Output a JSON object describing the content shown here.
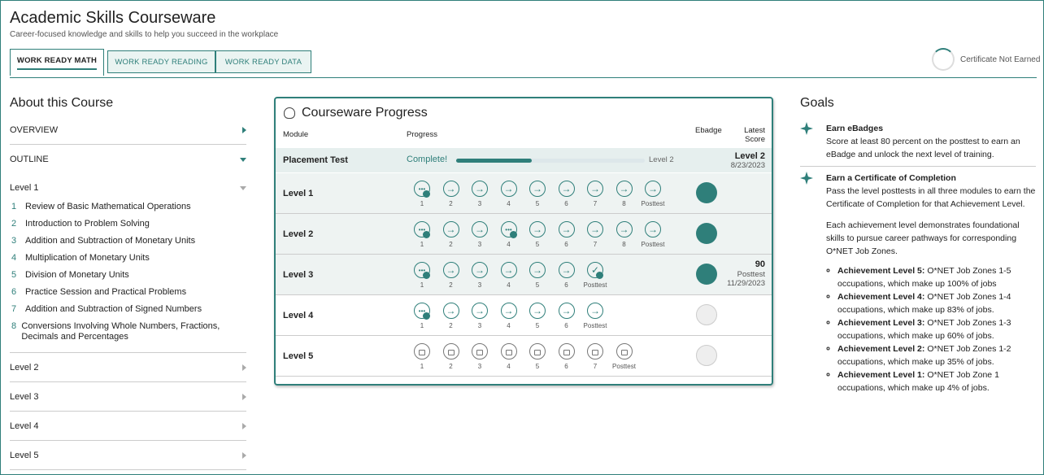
{
  "header": {
    "title": "Academic Skills Courseware",
    "subtitle": "Career-focused knowledge and skills to help you succeed in the workplace"
  },
  "tabs": [
    "WORK READY MATH",
    "WORK READY READING",
    "WORK READY DATA"
  ],
  "certificate": "Certificate Not Earned",
  "about": {
    "title": "About this Course",
    "sections": [
      "OVERVIEW",
      "OUTLINE"
    ],
    "levels": [
      {
        "name": "Level 1",
        "lessons": [
          {
            "number": "1",
            "title": "Review of Basic Mathematical Operations"
          },
          {
            "number": "2",
            "title": "Introduction to Problem Solving"
          },
          {
            "number": "3",
            "title": "Addition and Subtraction of Monetary Units"
          },
          {
            "number": "4",
            "title": "Multiplication of Monetary Units"
          },
          {
            "number": "5",
            "title": "Division of Monetary Units"
          },
          {
            "number": "6",
            "title": "Practice Session and Practical Problems"
          },
          {
            "number": "7",
            "title": "Addition and Subtraction of Signed Numbers"
          },
          {
            "number": "8",
            "title": "Conversions Involving Whole Numbers, Fractions, Decimals and Percentages"
          }
        ]
      },
      {
        "name": "Level 2"
      },
      {
        "name": "Level 3"
      },
      {
        "name": "Level 4"
      },
      {
        "name": "Level 5"
      }
    ]
  },
  "progress": {
    "title": "Courseware Progress",
    "columns": {
      "module": "Module",
      "progress": "Progress",
      "ebadge": "Ebadge",
      "score": "Latest Score"
    },
    "placement": {
      "name": "Placement Test",
      "status": "Complete!",
      "bar_label": "Level 2",
      "score": "Level 2",
      "date": "8/23/2023"
    },
    "rows": [
      {
        "name": "Level 1",
        "steps": [
          "1",
          "2",
          "3",
          "4",
          "5",
          "6",
          "7",
          "8",
          "Posttest"
        ]
      },
      {
        "name": "Level 2",
        "steps": [
          "1",
          "2",
          "3",
          "4",
          "5",
          "6",
          "7",
          "8",
          "Posttest"
        ]
      },
      {
        "name": "Level 3",
        "steps": [
          "1",
          "2",
          "3",
          "4",
          "5",
          "6",
          "Posttest"
        ],
        "score": 90,
        "score_label": "Posttest",
        "date": "11/29/2023"
      },
      {
        "name": "Level 4",
        "steps": [
          "1",
          "2",
          "3",
          "4",
          "5",
          "6",
          "Posttest"
        ]
      },
      {
        "name": "Level 5",
        "steps": [
          "1",
          "2",
          "3",
          "4",
          "5",
          "6",
          "7",
          "Posttest"
        ]
      }
    ]
  },
  "goals": {
    "title": "Goals",
    "items": [
      {
        "title": "Earn eBadges",
        "text": "Score at least 80 percent on the posttest to earn an eBadge and unlock the next level of training."
      },
      {
        "title": "Earn a Certificate of Completion",
        "text": "Pass the level posttests in all three modules to earn the Certificate of Completion for that Achievement Level.",
        "note": "Each achievement level demonstrates foundational skills to pursue career pathways for corresponding O*NET Job Zones.",
        "levels": [
          {
            "bold": "Achievement Level 5:",
            "text": "O*NET Job Zones 1-5 occupations, which make up 100% of jobs"
          },
          {
            "bold": "Achievement Level 4:",
            "text": "O*NET Job Zones 1-4 occupations, which make up 83% of jobs."
          },
          {
            "bold": "Achievement Level 3:",
            "text": "O*NET Job Zones 1-3 occupations, which make up 60% of jobs."
          },
          {
            "bold": "Achievement Level 2:",
            "text": "O*NET Job Zones 1-2 occupations, which make up 35% of jobs."
          },
          {
            "bold": "Achievement Level 1:",
            "text": "O*NET Job Zone 1 occupations, which make up 4% of jobs."
          }
        ]
      }
    ]
  }
}
